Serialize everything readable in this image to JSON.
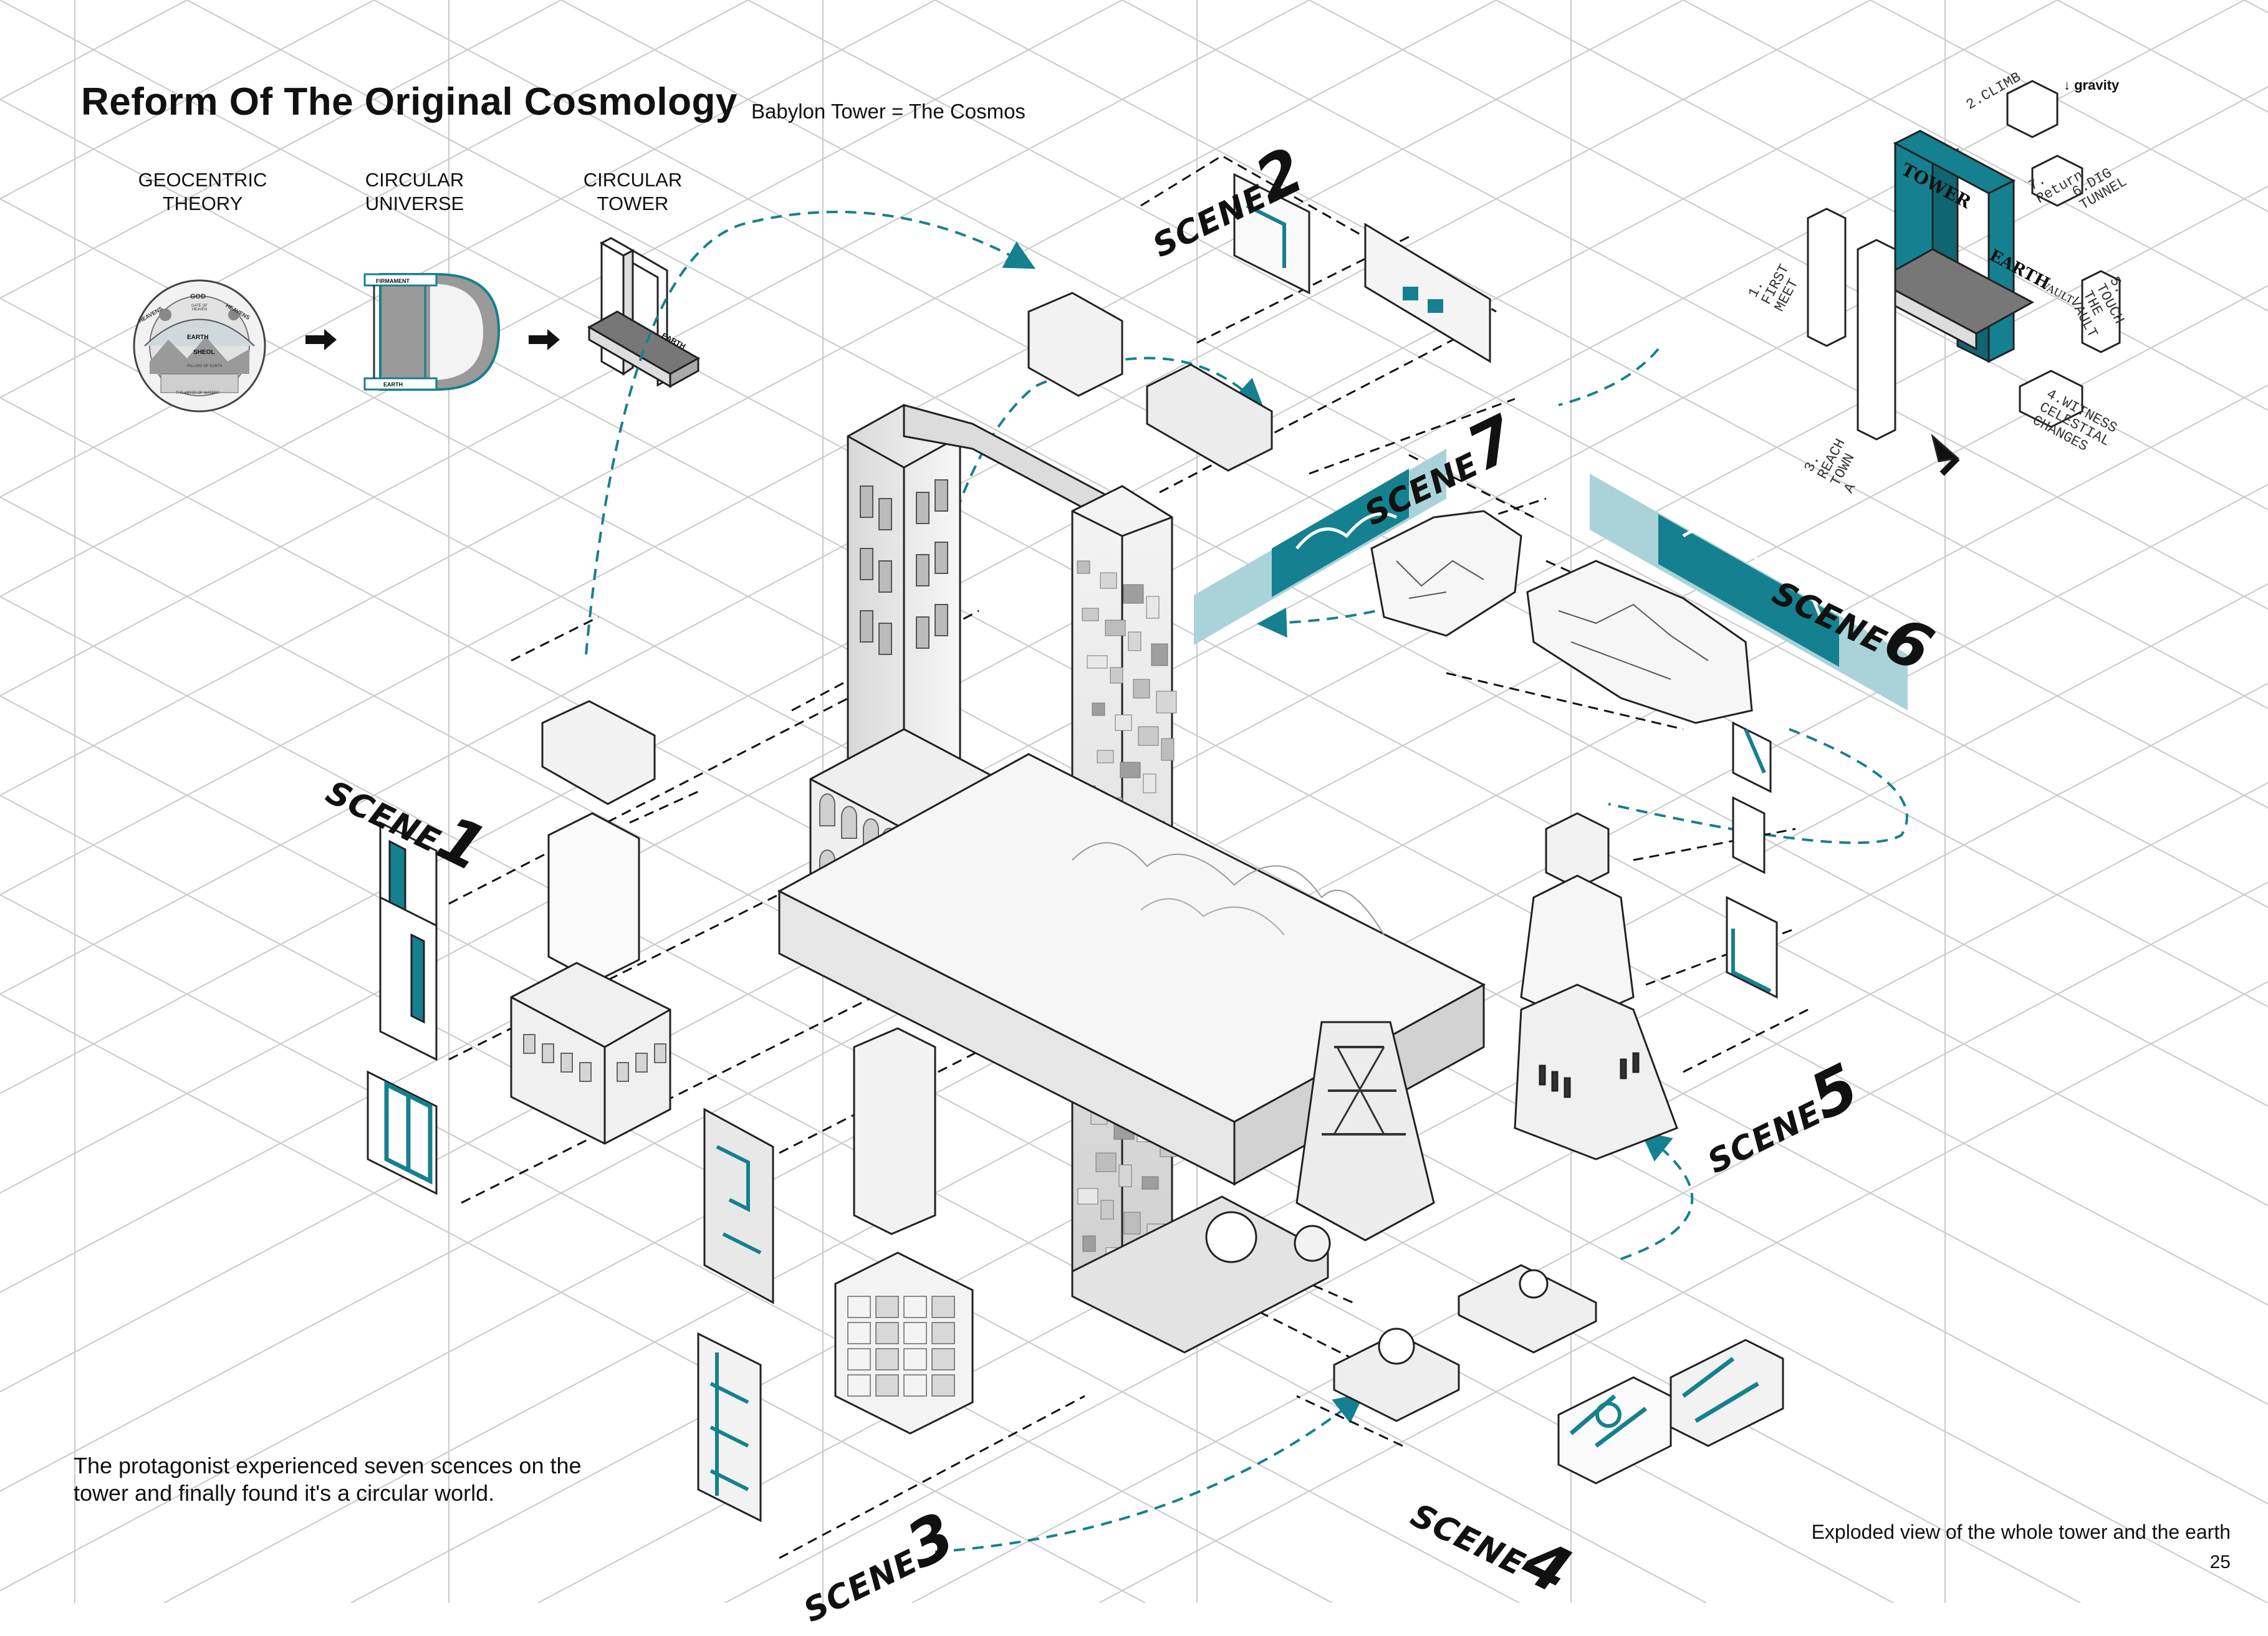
{
  "title": "Reform Of The Original Cosmology",
  "subtitle": "Babylon Tower = The Cosmos",
  "concepts": [
    {
      "label": "GEOCENTRIC\nTHEORY"
    },
    {
      "label": "CIRCULAR\nUNIVERSE"
    },
    {
      "label": "CIRCULAR\nTOWER"
    }
  ],
  "geocentric_labels": {
    "god": "GOD",
    "heavens_left": "HEAVENS",
    "heavens_right": "HEAVENS",
    "gate": "GATE OF HEAVEN",
    "earth": "EARTH",
    "sheol": "SHEOL",
    "pillars": "PILLARS OF EARTH",
    "abyss": "THE ABYSS OF WATERS"
  },
  "universe_labels": {
    "firmament": "FIRMAMENT",
    "earth": "EARTH"
  },
  "tower_diagram_label": "EARTH",
  "scenes": [
    {
      "word": "SCENE",
      "number": "1"
    },
    {
      "word": "SCENE",
      "number": "2"
    },
    {
      "word": "SCENE",
      "number": "3"
    },
    {
      "word": "SCENE",
      "number": "4"
    },
    {
      "word": "SCENE",
      "number": "5"
    },
    {
      "word": "SCENE",
      "number": "6"
    },
    {
      "word": "SCENE",
      "number": "7"
    }
  ],
  "sequence_diagram": {
    "gravity": "↓ gravity",
    "tower": "TOWER",
    "earth": "EARTH",
    "vault": "VAULT",
    "steps": [
      "1.\nFIRST\nMEET",
      "2.CLIMB",
      "3.\nREACH\nTOWN\nA",
      "4.WITNESS\nCELESTIAL\nCHANGES",
      "5.\nTOUCH\nTHE\nVAULT",
      "6.DIG\nTUNNEL",
      "7.\nReturn"
    ]
  },
  "caption": "The protagonist experienced seven scences on the tower and finally found it's a circular world.",
  "footer": "Exploded view of the whole tower and the earth",
  "page_number": "25",
  "colors": {
    "accent": "#15808f",
    "accent_light": "#a9d3d8",
    "line": "#111111",
    "grid": "#c8c8c8",
    "fill": "#e9e9e9"
  }
}
